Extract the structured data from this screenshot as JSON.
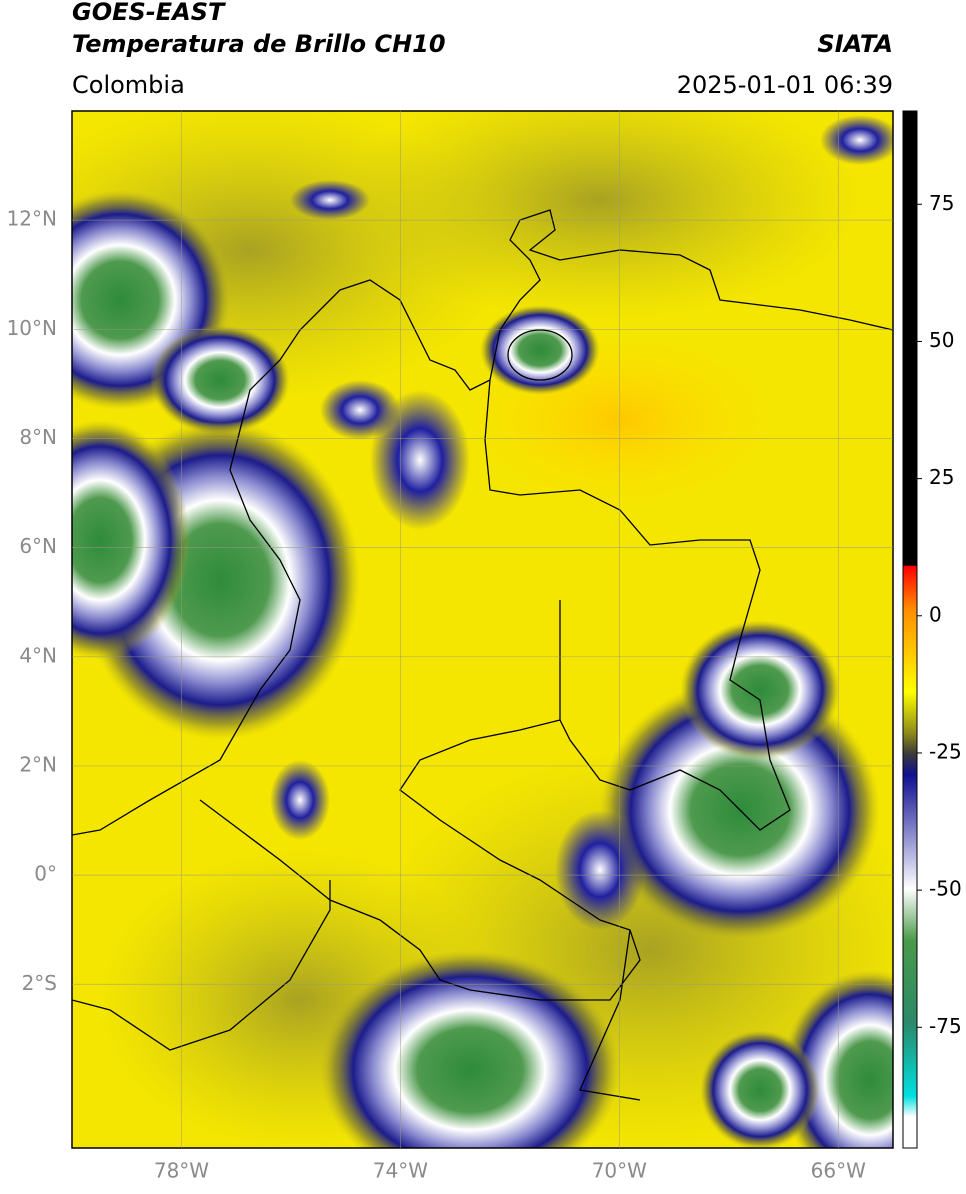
{
  "header": {
    "title": "GOES-EAST",
    "subtitle": "Temperatura de Brillo CH10",
    "source": "SIATA",
    "region": "Colombia",
    "timestamp": "2025-01-01 06:39"
  },
  "map": {
    "lon_range": [
      -80,
      -65
    ],
    "lat_range": [
      -5,
      14
    ],
    "grid": true,
    "lon_ticks": [
      {
        "value": -78,
        "label": "78°W"
      },
      {
        "value": -74,
        "label": "74°W"
      },
      {
        "value": -70,
        "label": "70°W"
      },
      {
        "value": -66,
        "label": "66°W"
      }
    ],
    "lat_ticks": [
      {
        "value": 12,
        "label": "12°N"
      },
      {
        "value": 10,
        "label": "10°N"
      },
      {
        "value": 8,
        "label": "8°N"
      },
      {
        "value": 6,
        "label": "6°N"
      },
      {
        "value": 4,
        "label": "4°N"
      },
      {
        "value": 2,
        "label": "2°N"
      },
      {
        "value": 0,
        "label": "0°"
      },
      {
        "value": -2,
        "label": "2°S"
      }
    ]
  },
  "colorbar": {
    "range": [
      -97,
      92
    ],
    "ticks": [
      75,
      50,
      25,
      0,
      -25,
      -50,
      -75
    ]
  }
}
